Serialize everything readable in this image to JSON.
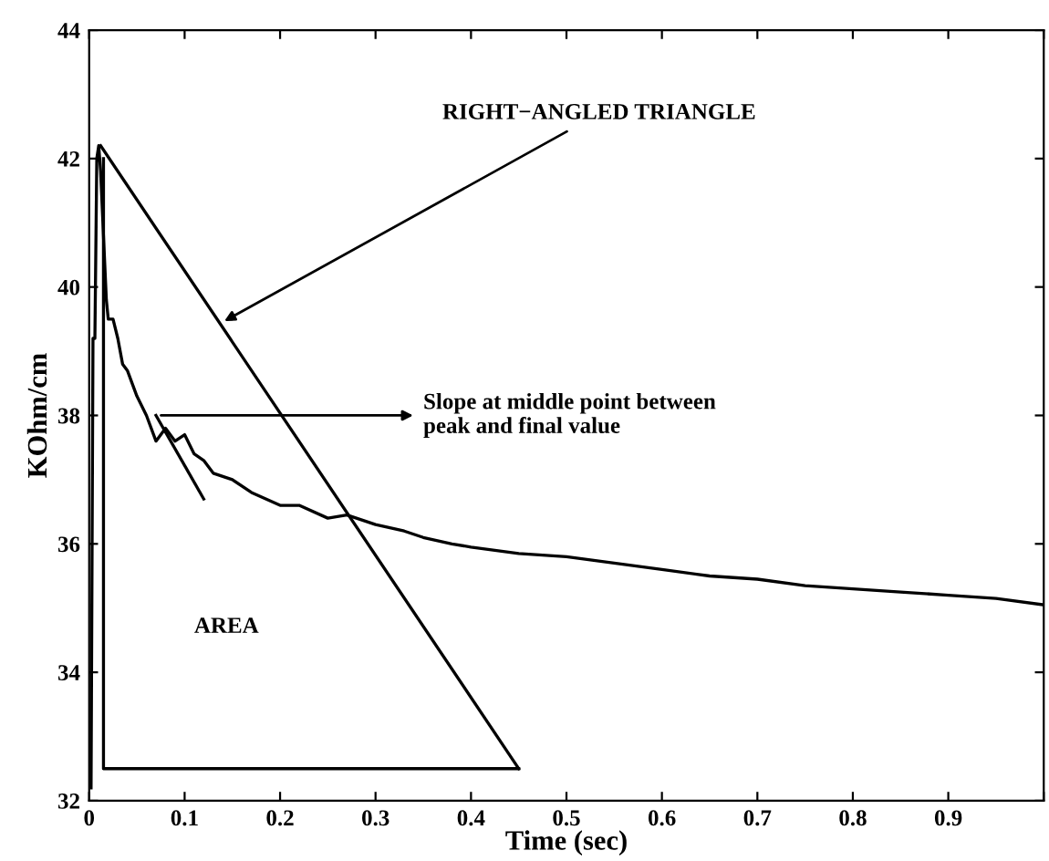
{
  "chart_data": {
    "type": "line",
    "xlabel": "Time (sec)",
    "ylabel": "KOhm/cm",
    "xlim": [
      0,
      1
    ],
    "ylim": [
      32,
      44
    ],
    "xticks": [
      0,
      0.1,
      0.2,
      0.3,
      0.4,
      0.5,
      0.6,
      0.7,
      0.8,
      0.9,
      {
        "value": 1,
        "label": null
      }
    ],
    "yticks": [
      32,
      34,
      36,
      38,
      40,
      42,
      44
    ],
    "grid": false,
    "legend": false,
    "marker": "none",
    "line_style": "solid",
    "series": [
      {
        "color": "#000000",
        "x": [
          0.002,
          0.004,
          0.006,
          0.008,
          0.01,
          0.012,
          0.015,
          0.018,
          0.02,
          0.025,
          0.03,
          0.035,
          0.04,
          0.05,
          0.06,
          0.07,
          0.08,
          0.09,
          0.1,
          0.11,
          0.12,
          0.13,
          0.15,
          0.17,
          0.2,
          0.22,
          0.25,
          0.27,
          0.3,
          0.33,
          0.35,
          0.38,
          0.4,
          0.45,
          0.5,
          0.55,
          0.6,
          0.65,
          0.7,
          0.75,
          0.8,
          0.85,
          0.9,
          0.95,
          1.0
        ],
        "values": [
          32.2,
          39.2,
          39.2,
          42.0,
          42.2,
          41.8,
          40.8,
          39.8,
          39.5,
          39.5,
          39.2,
          38.8,
          38.7,
          38.3,
          38.0,
          37.6,
          37.8,
          37.6,
          37.7,
          37.4,
          37.3,
          37.1,
          37.0,
          36.8,
          36.6,
          36.6,
          36.4,
          36.45,
          36.3,
          36.2,
          36.1,
          36.0,
          35.95,
          35.85,
          35.8,
          35.7,
          35.6,
          35.5,
          35.45,
          35.35,
          35.3,
          35.25,
          35.2,
          35.15,
          35.05
        ]
      },
      {
        "color": "#000000",
        "x": [
          0.012,
          0.45
        ],
        "values": [
          42.2,
          32.5
        ]
      },
      {
        "color": "#000000",
        "x": [
          0.015,
          0.015,
          0.45
        ],
        "values": [
          42.0,
          32.5,
          32.5
        ]
      },
      {
        "color": "#000000",
        "x": [
          0.07,
          0.12
        ],
        "values": [
          38.0,
          36.7
        ]
      }
    ],
    "annotations": [
      {
        "text": "RIGHT−ANGLED TRIANGLE",
        "x": 0.137,
        "y": 39.43
      },
      {
        "text": "Slope at middle point between\npeak and final value",
        "x": 0.07,
        "y": 38.0
      },
      "AREA"
    ]
  }
}
